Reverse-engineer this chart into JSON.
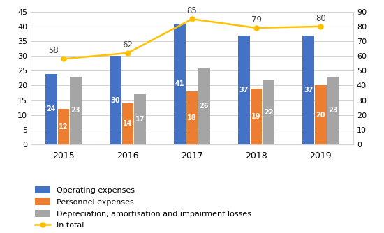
{
  "years": [
    2015,
    2016,
    2017,
    2018,
    2019
  ],
  "operating_expenses": [
    24,
    30,
    41,
    37,
    37
  ],
  "personnel_expenses": [
    12,
    14,
    18,
    19,
    20
  ],
  "depreciation": [
    23,
    17,
    26,
    22,
    23
  ],
  "in_total": [
    58,
    62,
    85,
    79,
    80
  ],
  "line_labels": [
    58,
    62,
    85,
    79,
    80
  ],
  "color_operating": "#4472C4",
  "color_personnel": "#ED7D31",
  "color_depreciation": "#A5A5A5",
  "color_line": "#FFC000",
  "ylim_left": [
    0,
    45
  ],
  "ylim_right": [
    0,
    90
  ],
  "yticks_left": [
    0,
    5,
    10,
    15,
    20,
    25,
    30,
    35,
    40,
    45
  ],
  "yticks_right": [
    0,
    10,
    20,
    30,
    40,
    50,
    60,
    70,
    80,
    90
  ],
  "legend_labels": [
    "Operating expenses",
    "Personnel expenses",
    "Depreciation, amortisation and impairment losses",
    "In total"
  ],
  "bar_width": 0.18,
  "background_color": "#ffffff"
}
